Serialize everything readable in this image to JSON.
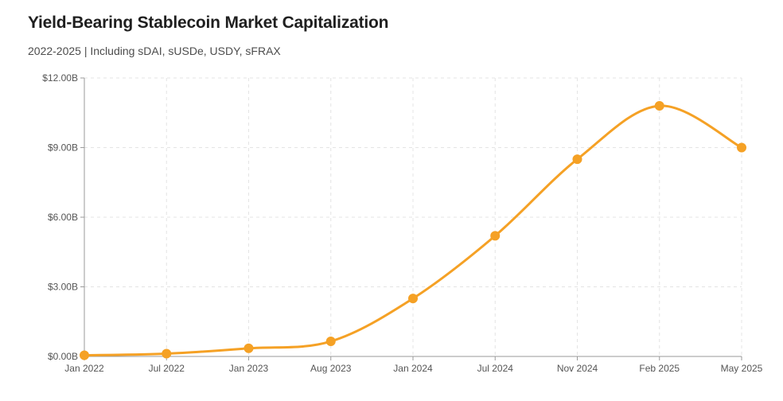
{
  "chart_data": {
    "type": "line",
    "title": "Yield-Bearing Stablecoin Market Capitalization",
    "subtitle": "2022-2025 | Including sDAI, sUSDe, USDY, sFRAX",
    "xlabel": "",
    "ylabel": "",
    "categories": [
      "Jan 2022",
      "Jul 2022",
      "Jan 2023",
      "Aug 2023",
      "Jan 2024",
      "Jul 2024",
      "Nov 2024",
      "Feb 2025",
      "May 2025"
    ],
    "series": [
      {
        "values": [
          0.05,
          0.12,
          0.35,
          0.65,
          2.5,
          5.2,
          8.5,
          10.8,
          9.0
        ]
      }
    ],
    "ylim": [
      0,
      12
    ],
    "yticks": [
      0,
      3,
      6,
      9,
      12
    ],
    "ytick_labels": [
      "$0.00B",
      "$3.00B",
      "$6.00B",
      "$9.00B",
      "$12.00B"
    ],
    "grid": true,
    "legend": "none",
    "colors": {
      "line": "#f5a125",
      "grid": "#e4e4e4",
      "axis": "#9a9a9a"
    }
  }
}
